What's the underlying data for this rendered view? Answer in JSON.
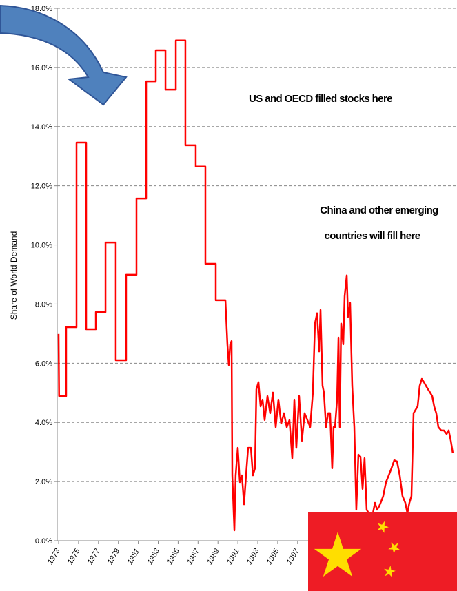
{
  "chart_data": {
    "type": "line",
    "y_label": "Share of World Demand",
    "annotations": [
      "US and OECD filled stocks here",
      "China and other emerging",
      "countries will fill here"
    ],
    "color": "#ff0000",
    "grid": true,
    "xlim": [
      1973,
      2013
    ],
    "xticks": [
      1973,
      1975,
      1977,
      1979,
      1981,
      1983,
      1985,
      1987,
      1989,
      1991,
      1993,
      1995,
      1997
    ],
    "ylim": [
      0,
      18
    ],
    "yticks": [
      {
        "value": 0,
        "label": "0.0%"
      },
      {
        "value": 2,
        "label": "2.0%"
      },
      {
        "value": 4,
        "label": "4.0%"
      },
      {
        "value": 6,
        "label": "6.0%"
      },
      {
        "value": 8,
        "label": "8.0%"
      },
      {
        "value": 10,
        "label": "10.0%"
      },
      {
        "value": 12,
        "label": "12.0%"
      },
      {
        "value": 14,
        "label": "14.0%"
      },
      {
        "value": 16,
        "label": "16.0%"
      },
      {
        "value": 18,
        "label": "18.0%"
      }
    ],
    "x": [
      1973,
      1973.05,
      1973.76,
      1973.76,
      1974.8,
      1974.8,
      1975.77,
      1975.77,
      1976.74,
      1976.74,
      1977.71,
      1977.71,
      1978.74,
      1978.74,
      1979.78,
      1979.78,
      1980.82,
      1980.82,
      1981.79,
      1981.79,
      1982.76,
      1982.76,
      1983.73,
      1983.73,
      1984.77,
      1984.77,
      1985.73,
      1985.73,
      1986.77,
      1986.77,
      1987.74,
      1987.74,
      1988.78,
      1988.78,
      1989.75,
      1989.95,
      1990.09,
      1990.23,
      1990.37,
      1990.44,
      1990.65,
      1990.78,
      1990.99,
      1991.2,
      1991.41,
      1991.62,
      1991.82,
      1992.03,
      1992.31,
      1992.51,
      1992.72,
      1992.86,
      1993.07,
      1993.28,
      1993.48,
      1993.69,
      1993.97,
      1994.24,
      1994.52,
      1994.8,
      1995.07,
      1995.35,
      1995.63,
      1995.91,
      1996.18,
      1996.46,
      1996.67,
      1996.87,
      1997.15,
      1997.43,
      1997.7,
      1997.98,
      1998.26,
      1998.53,
      1998.74,
      1998.95,
      1999.16,
      1999.3,
      1999.5,
      1999.64,
      1999.85,
      2000.06,
      2000.26,
      2000.47,
      2000.61,
      2000.75,
      2000.96,
      2001.1,
      2001.23,
      2001.37,
      2001.58,
      2001.72,
      2001.93,
      2002.06,
      2002.27,
      2002.48,
      2002.69,
      2002.89,
      2003.1,
      2003.31,
      2003.52,
      2003.72,
      2003.93,
      2004.14,
      2004.35,
      2004.56,
      2004.76,
      2004.97,
      2005.18,
      2005.39,
      2005.59,
      2005.87,
      2006.15,
      2006.42,
      2006.7,
      2006.98,
      2007.25,
      2007.53,
      2007.81,
      2008.02,
      2008.22,
      2008.43,
      2008.64,
      2008.85,
      2009.05,
      2009.26,
      2009.47,
      2009.68,
      2009.88,
      2010.09,
      2010.3,
      2010.51,
      2010.71,
      2010.92,
      2011.13,
      2011.41,
      2011.68,
      2011.96,
      2012.17,
      2012.38,
      2012.58
    ],
    "values": [
      6.99,
      4.89,
      4.89,
      7.22,
      7.22,
      13.46,
      13.46,
      7.15,
      7.15,
      7.73,
      7.73,
      10.08,
      10.08,
      6.1,
      6.1,
      8.99,
      8.99,
      11.57,
      11.57,
      15.53,
      15.53,
      16.58,
      16.58,
      15.25,
      15.25,
      16.91,
      16.91,
      13.37,
      13.37,
      12.65,
      12.65,
      9.36,
      9.36,
      8.13,
      8.13,
      6.64,
      5.94,
      6.64,
      6.75,
      2.21,
      0.35,
      2.21,
      3.14,
      1.98,
      2.21,
      1.23,
      2.21,
      3.14,
      3.14,
      2.21,
      2.45,
      5.12,
      5.36,
      4.54,
      4.77,
      4.08,
      4.89,
      4.31,
      5.01,
      3.84,
      4.77,
      3.96,
      4.31,
      3.84,
      4.08,
      2.79,
      4.77,
      3.14,
      4.89,
      3.38,
      4.31,
      4.08,
      3.84,
      5.01,
      7.34,
      7.69,
      6.4,
      7.8,
      5.24,
      5.01,
      3.84,
      4.31,
      4.31,
      2.45,
      3.84,
      3.84,
      4.77,
      6.87,
      3.84,
      7.34,
      6.64,
      8.27,
      8.97,
      7.57,
      8.04,
      5.24,
      3.84,
      1.05,
      2.91,
      2.84,
      1.75,
      2.79,
      1.05,
      0.93,
      0.89,
      0.93,
      1.28,
      1.05,
      1.16,
      1.33,
      1.51,
      1.98,
      2.21,
      2.45,
      2.72,
      2.68,
      2.21,
      1.51,
      1.28,
      0.93,
      1.28,
      1.51,
      4.31,
      4.43,
      4.54,
      5.24,
      5.47,
      5.36,
      5.24,
      5.12,
      5.01,
      4.89,
      4.54,
      4.31,
      3.84,
      3.73,
      3.73,
      3.61,
      3.73,
      3.38,
      2.96
    ]
  }
}
